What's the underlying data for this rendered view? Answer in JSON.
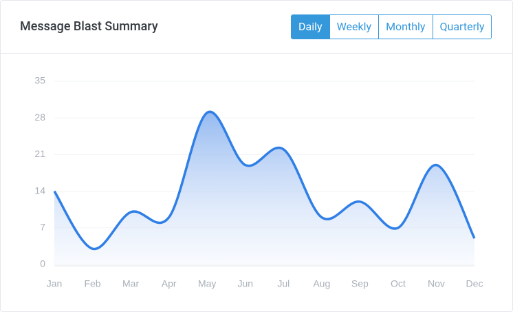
{
  "header": {
    "title": "Message Blast Summary",
    "tabs": [
      "Daily",
      "Weekly",
      "Monthly",
      "Quarterly"
    ],
    "active_tab": 0
  },
  "chart_data": {
    "type": "area",
    "categories": [
      "Jan",
      "Feb",
      "Mar",
      "Apr",
      "May",
      "Jun",
      "Jul",
      "Aug",
      "Sep",
      "Oct",
      "Nov",
      "Dec"
    ],
    "values": [
      14,
      3,
      10,
      9,
      29,
      19,
      22,
      9,
      12,
      7,
      19,
      5
    ],
    "color": "#2f7fe6",
    "ylim": [
      0,
      35
    ],
    "yticks": [
      0,
      7,
      14,
      21,
      28,
      35
    ],
    "grid": true
  }
}
